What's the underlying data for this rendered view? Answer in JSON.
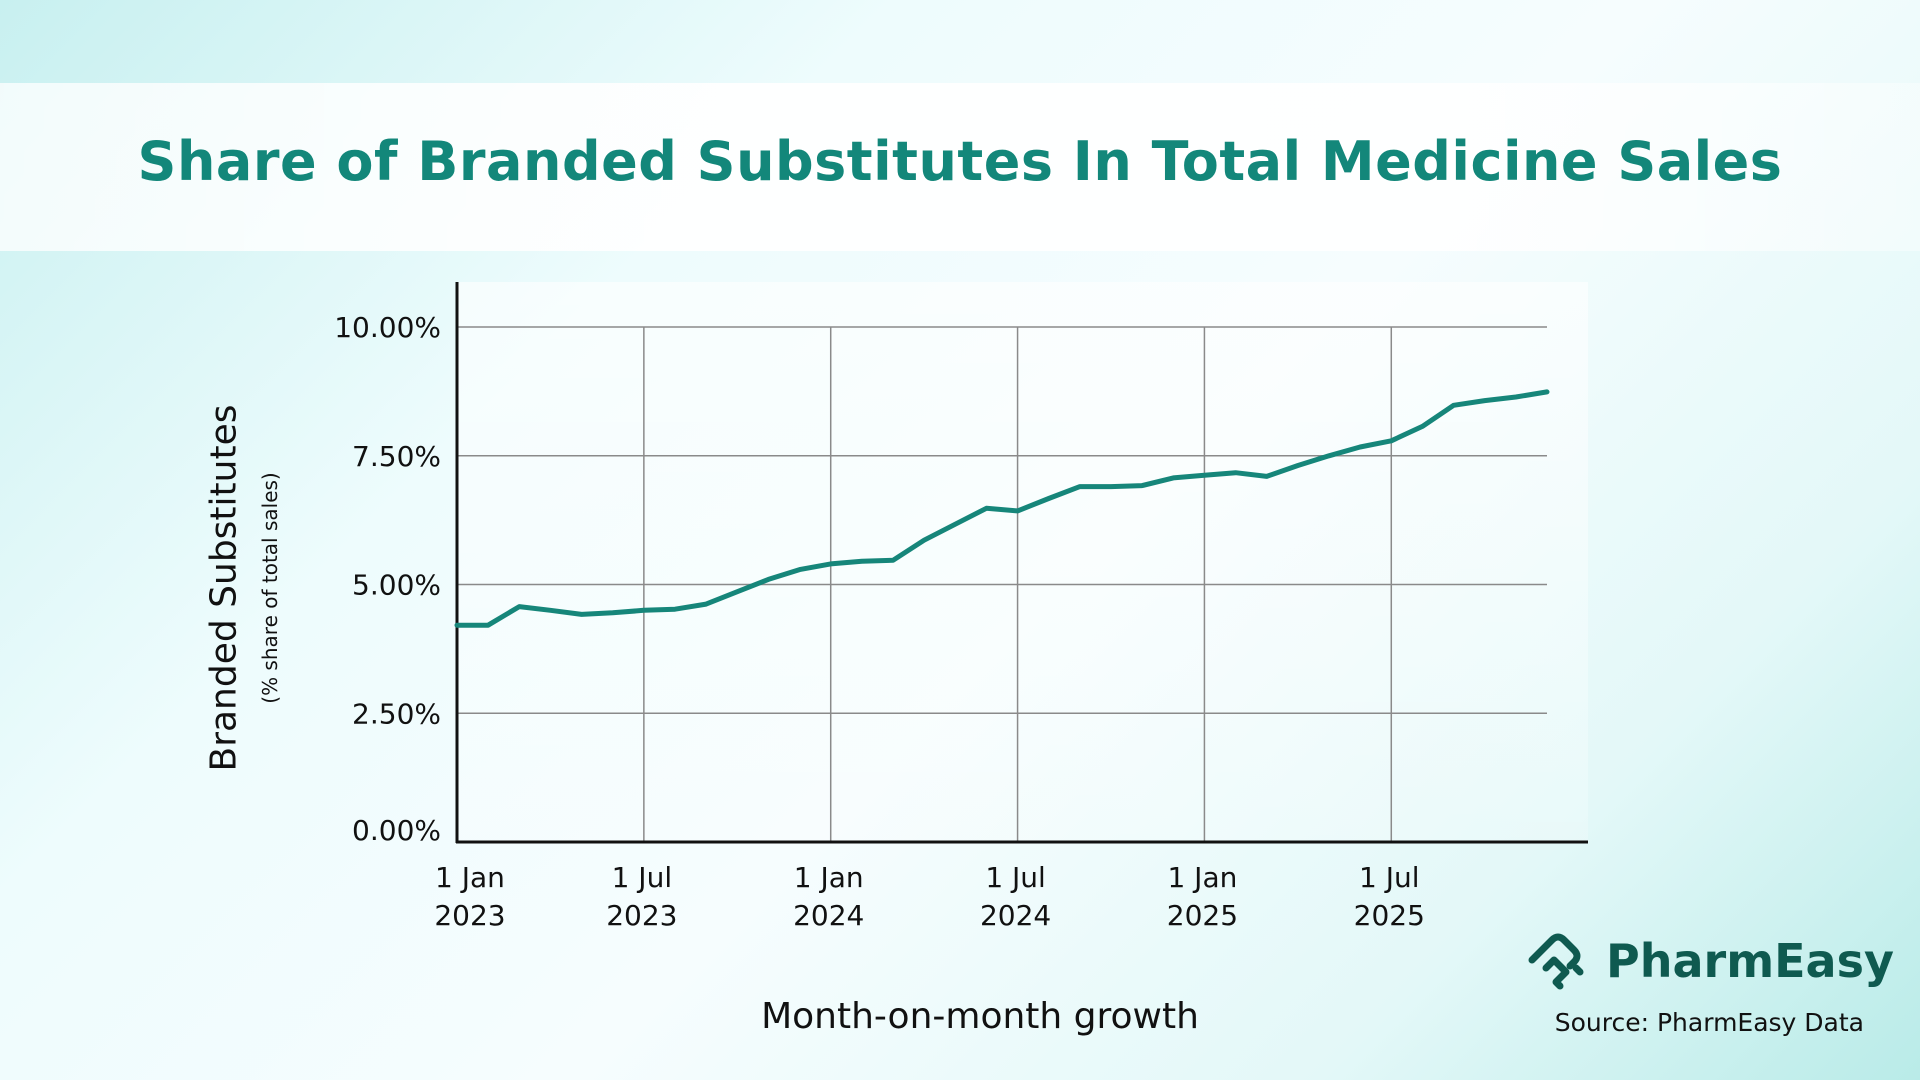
{
  "title": "Share of Branded Substitutes In Total Medicine Sales",
  "brand": {
    "name": "PharmEasy",
    "logo_icon": "pharmeasy-logo-icon",
    "color": "#0f5a50"
  },
  "source": "Source: PharmEasy Data",
  "chart_data": {
    "type": "line",
    "title": "Share of Branded Substitutes In Total Medicine Sales",
    "xlabel": "Month-on-month growth",
    "ylabel": "Branded Substitutes",
    "ylabel_sub": "(% share of total sales)",
    "ylim": [
      0,
      10
    ],
    "yticks": [
      "0.00%",
      "2.50%",
      "5.00%",
      "7.50%",
      "10.00%"
    ],
    "ytick_values": [
      0,
      2.5,
      5,
      7.5,
      10
    ],
    "xticks": [
      {
        "line1": "1 Jan",
        "line2": "2023",
        "month_index": 0
      },
      {
        "line1": "1 Jul",
        "line2": "2023",
        "month_index": 6
      },
      {
        "line1": "1 Jan",
        "line2": "2024",
        "month_index": 12
      },
      {
        "line1": "1 Jul",
        "line2": "2024",
        "month_index": 18
      },
      {
        "line1": "1 Jan",
        "line2": "2025",
        "month_index": 24
      },
      {
        "line1": "1 Jul",
        "line2": "2025",
        "month_index": 30
      }
    ],
    "grid": true,
    "line_color": "#16867a",
    "x": [
      "2023-01",
      "2023-02",
      "2023-03",
      "2023-04",
      "2023-05",
      "2023-06",
      "2023-07",
      "2023-08",
      "2023-09",
      "2023-10",
      "2023-11",
      "2023-12",
      "2024-01",
      "2024-02",
      "2024-03",
      "2024-04",
      "2024-05",
      "2024-06",
      "2024-07",
      "2024-08",
      "2024-09",
      "2024-10",
      "2024-11",
      "2024-12",
      "2025-01",
      "2025-02",
      "2025-03",
      "2025-04",
      "2025-05",
      "2025-06",
      "2025-07",
      "2025-08",
      "2025-09",
      "2025-10",
      "2025-11",
      "2025-12"
    ],
    "values": [
      4.21,
      4.21,
      4.57,
      4.5,
      4.42,
      4.45,
      4.5,
      4.52,
      4.62,
      4.86,
      5.1,
      5.29,
      5.4,
      5.45,
      5.47,
      5.86,
      6.17,
      6.48,
      6.43,
      6.67,
      6.9,
      6.9,
      6.92,
      7.07,
      7.12,
      7.17,
      7.1,
      7.31,
      7.5,
      7.67,
      7.79,
      8.07,
      8.48,
      8.57,
      8.64,
      8.74
    ]
  }
}
